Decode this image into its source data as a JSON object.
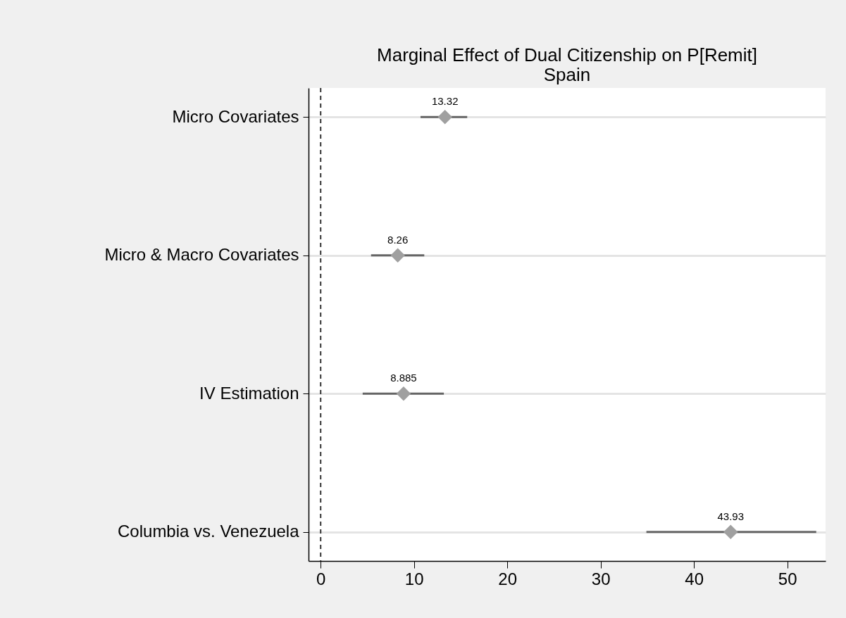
{
  "chart_data": {
    "type": "scatter",
    "orientation": "horizontal",
    "title": "Marginal Effect of Dual Citizenship on P[Remit]",
    "subtitle": "Spain",
    "categories": [
      "Micro Covariates",
      "Micro & Macro Covariates",
      "IV Estimation",
      "Columbia vs. Venezuela"
    ],
    "series": [
      {
        "color": "#a0a0a0",
        "values": [
          13.32,
          8.26,
          8.885,
          43.93
        ],
        "errors": [
          [
            10.7,
            15.7
          ],
          [
            5.4,
            11.1
          ],
          [
            4.5,
            13.2
          ],
          [
            34.9,
            53.1
          ]
        ]
      }
    ],
    "xlim": [
      -1.3,
      54.1
    ],
    "xticks": [
      0,
      10,
      20,
      30,
      40,
      50
    ],
    "ref_lines": [
      {
        "axis": "x",
        "value": 0,
        "line_style": "dashed",
        "color": "#333333"
      }
    ],
    "grid": "y",
    "marker": "diamond",
    "data_labels": true
  }
}
